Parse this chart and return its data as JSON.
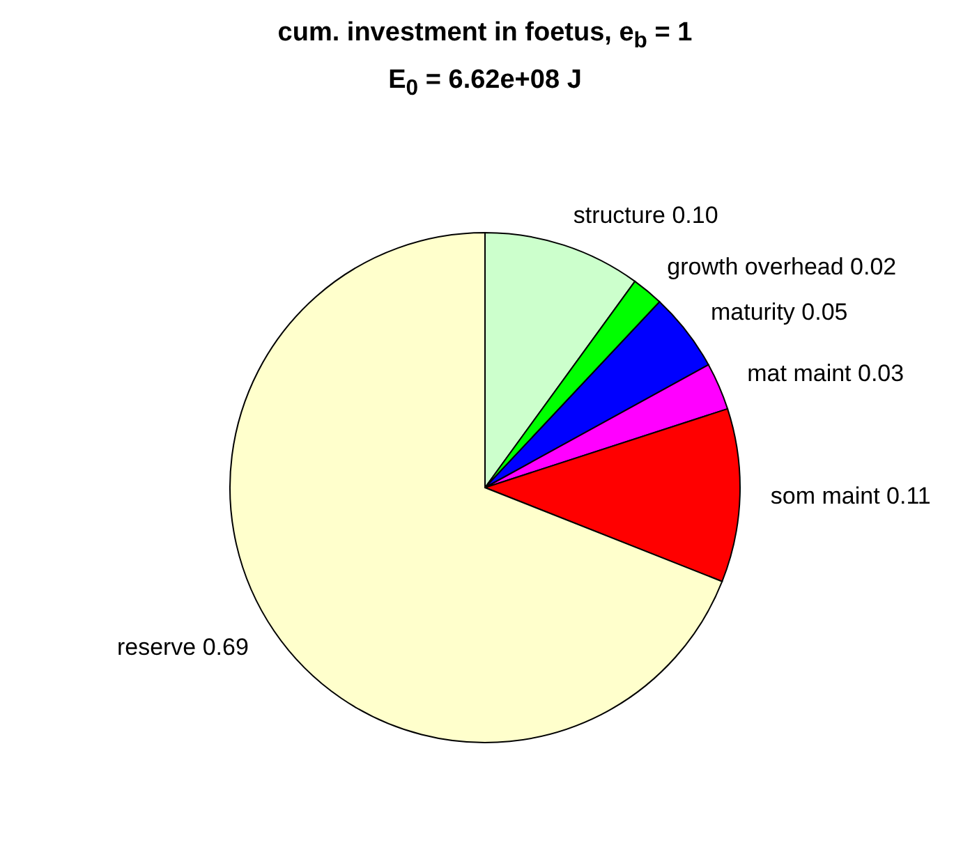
{
  "chart_data": {
    "type": "pie",
    "title": "cum. investment in foetus, e$_{b}$ = 1",
    "subtitle": "E$_{0}$ = 6.62e+08 J",
    "categories": [
      "structure",
      "growth overhead",
      "maturity",
      "mat maint",
      "som maint",
      "reserve"
    ],
    "values": [
      0.1,
      0.02,
      0.05,
      0.03,
      0.11,
      0.69
    ],
    "colors": [
      "#ccffcc",
      "#00ff00",
      "#0000ff",
      "#ff00ff",
      "#ff0000",
      "#ffffcc"
    ],
    "value_labels": [
      "0.10",
      "0.02",
      "0.05",
      "0.03",
      "0.11",
      "0.69"
    ]
  }
}
